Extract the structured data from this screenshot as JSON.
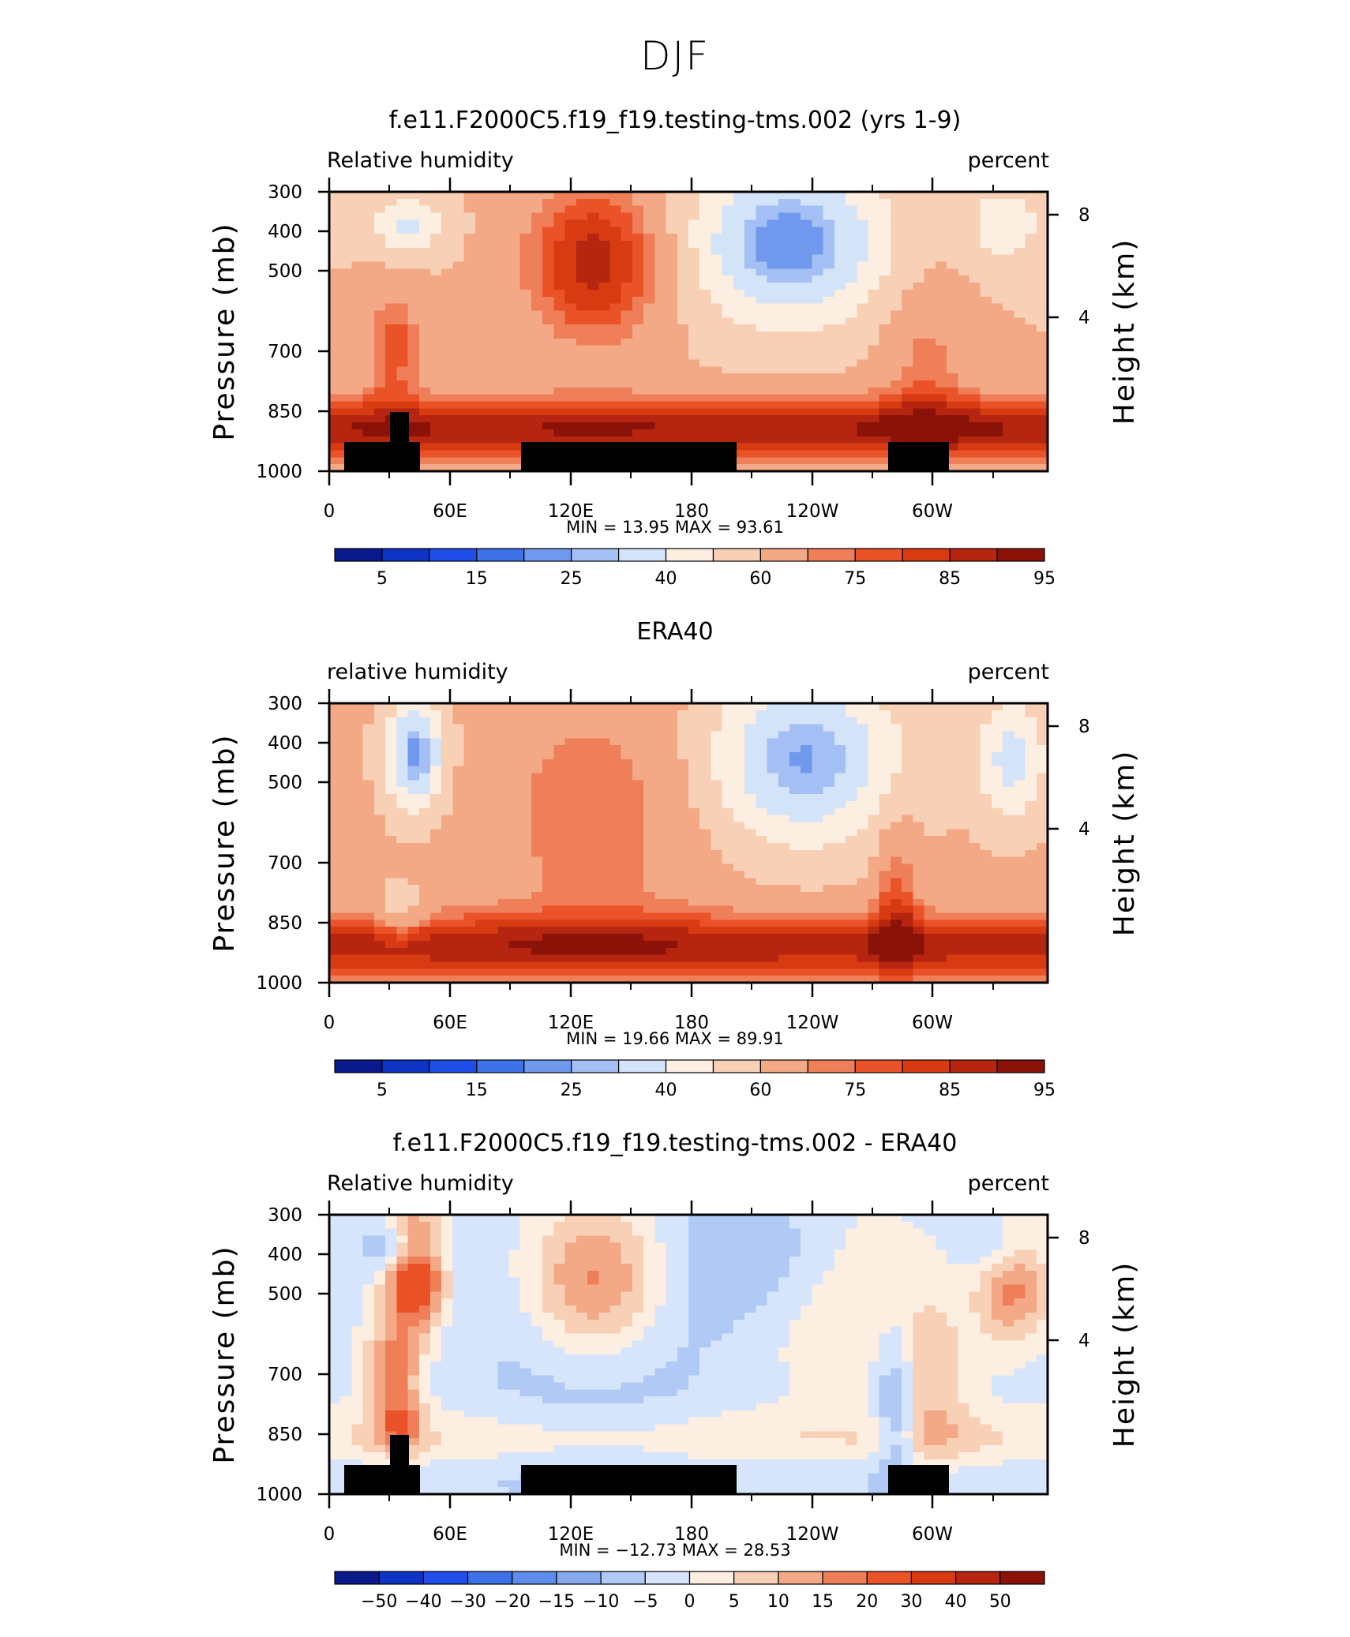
{
  "figure_title": "DJF",
  "colors": {
    "rh_palette": [
      "#0a1a8c",
      "#0c33c4",
      "#1f4fe8",
      "#3d72e8",
      "#7098ec",
      "#a3bff3",
      "#d3e3f8",
      "#fdeee2",
      "#f8d0b5",
      "#f3a886",
      "#ef7f58",
      "#ea5228",
      "#d83a12",
      "#b52510",
      "#8a1208"
    ],
    "diff_palette": [
      "#0a1a8c",
      "#0c33c4",
      "#1f4fe8",
      "#3d72e8",
      "#5e8cec",
      "#86a9f0",
      "#b0c9f5",
      "#d6e5fb",
      "#fdeee2",
      "#f8d0b5",
      "#f3a886",
      "#ef7f58",
      "#ea5228",
      "#d83a12",
      "#b52510",
      "#8a1208"
    ],
    "topography": "#000000",
    "frame": "#000000"
  },
  "chart_data": [
    {
      "type": "heatmap",
      "title": "f.e11.F2000C5.f19_f19.testing-tms.002 (yrs 1-9)",
      "left_label": "Relative humidity",
      "right_label": "percent",
      "ylabel": "Pressure (mb)",
      "ylabel_right": "Height (km)",
      "x_ticks": [
        "0",
        "60E",
        "120E",
        "180",
        "120W",
        "60W"
      ],
      "y_ticks": [
        "300",
        "400",
        "500",
        "700",
        "850",
        "1000"
      ],
      "y_ticks_right": [
        "8",
        "4"
      ],
      "stats": {
        "min_label": "MIN =",
        "min": "13.95",
        "max_label": "MAX =",
        "max": "93.61"
      },
      "colorbar_labels": [
        "5",
        "15",
        "25",
        "40",
        "60",
        "75",
        "85",
        "95"
      ],
      "ylim": [
        1000,
        300
      ],
      "palette": "rh_palette",
      "topography": true
    },
    {
      "type": "heatmap",
      "title": "ERA40",
      "left_label": "relative humidity",
      "right_label": "percent",
      "ylabel": "Pressure (mb)",
      "ylabel_right": "Height (km)",
      "x_ticks": [
        "0",
        "60E",
        "120E",
        "180",
        "120W",
        "60W"
      ],
      "y_ticks": [
        "300",
        "400",
        "500",
        "700",
        "850",
        "1000"
      ],
      "y_ticks_right": [
        "8",
        "4"
      ],
      "stats": {
        "min_label": "MIN =",
        "min": "19.66",
        "max_label": "MAX =",
        "max": "89.91"
      },
      "colorbar_labels": [
        "5",
        "15",
        "25",
        "40",
        "60",
        "75",
        "85",
        "95"
      ],
      "ylim": [
        1000,
        300
      ],
      "palette": "rh_palette",
      "topography": false
    },
    {
      "type": "heatmap",
      "title": "f.e11.F2000C5.f19_f19.testing-tms.002 - ERA40",
      "left_label": "Relative humidity",
      "right_label": "percent",
      "ylabel": "Pressure (mb)",
      "ylabel_right": "Height (km)",
      "x_ticks": [
        "0",
        "60E",
        "120E",
        "180",
        "120W",
        "60W"
      ],
      "y_ticks": [
        "300",
        "400",
        "500",
        "700",
        "850",
        "1000"
      ],
      "y_ticks_right": [
        "8",
        "4"
      ],
      "stats": {
        "min_label": "MIN =",
        "min": "−12.73",
        "max_label": "MAX =",
        "max": "28.53"
      },
      "colorbar_labels": [
        "−50",
        "−40",
        "−30",
        "−20",
        "−15",
        "−10",
        "−5",
        "0",
        "5",
        "10",
        "15",
        "20",
        "30",
        "40",
        "50"
      ],
      "ylim": [
        1000,
        300
      ],
      "palette": "diff_palette",
      "topography": true
    }
  ]
}
